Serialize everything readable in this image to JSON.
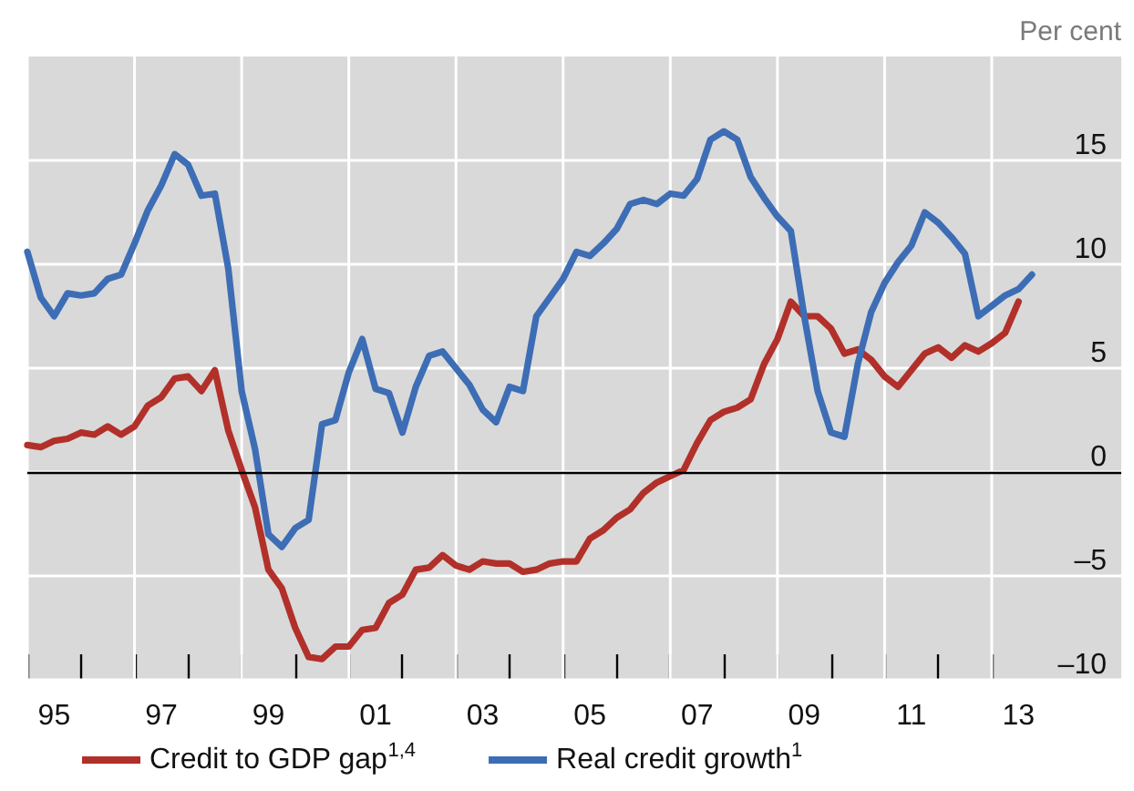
{
  "chart_data": {
    "type": "line",
    "ylabel": "Per cent",
    "xlim": [
      "1995-01",
      "2015-06"
    ],
    "ylim": [
      -10,
      20
    ],
    "xticks": [
      {
        "value": "1995-01",
        "label": null
      },
      {
        "value": "1996-01",
        "label": null
      },
      {
        "value": "1997-01",
        "label": null
      },
      {
        "value": "1998-01",
        "label": null
      },
      {
        "value": "1999-01",
        "label": null
      },
      {
        "value": "2000-01",
        "label": null
      },
      {
        "value": "2001-01",
        "label": null
      },
      {
        "value": "2002-01",
        "label": null
      },
      {
        "value": "2003-01",
        "label": null
      },
      {
        "value": "2004-01",
        "label": null
      },
      {
        "value": "2005-01",
        "label": null
      },
      {
        "value": "2006-01",
        "label": null
      },
      {
        "value": "2007-01",
        "label": null
      },
      {
        "value": "2008-01",
        "label": null
      },
      {
        "value": "2009-01",
        "label": null
      },
      {
        "value": "2010-01",
        "label": null
      },
      {
        "value": "2011-01",
        "label": null
      },
      {
        "value": "2012-01",
        "label": null
      },
      {
        "value": "2013-01",
        "label": null
      },
      {
        "value": "1995-07",
        "label": "95"
      },
      {
        "value": "1997-07",
        "label": "97"
      },
      {
        "value": "1999-07",
        "label": "99"
      },
      {
        "value": "2001-07",
        "label": "01"
      },
      {
        "value": "2003-07",
        "label": "03"
      },
      {
        "value": "2005-07",
        "label": "05"
      },
      {
        "value": "2007-07",
        "label": "07"
      },
      {
        "value": "2009-07",
        "label": "09"
      },
      {
        "value": "2011-07",
        "label": "11"
      },
      {
        "value": "2013-07",
        "label": "13"
      }
    ],
    "yticks": [
      {
        "value": -10,
        "label": "–10"
      },
      {
        "value": -5,
        "label": "–5"
      },
      0,
      5,
      10,
      15
    ],
    "grid": true,
    "legend": "bottom",
    "line_style": "solid",
    "ref_lines": [
      {
        "axis": "y",
        "value": 0,
        "color": "#000000"
      }
    ],
    "series": [
      {
        "name": "Credit to GDP gap$^{1,4}$",
        "color": "#b2302a",
        "x": [
          "1995-01",
          "1995-04",
          "1995-07",
          "1995-10",
          "1996-01",
          "1996-04",
          "1996-07",
          "1996-10",
          "1997-01",
          "1997-04",
          "1997-07",
          "1997-10",
          "1998-01",
          "1998-04",
          "1998-07",
          "1998-10",
          "1999-01",
          "1999-04",
          "1999-07",
          "1999-10",
          "2000-01",
          "2000-04",
          "2000-07",
          "2000-10",
          "2001-01",
          "2001-04",
          "2001-07",
          "2001-10",
          "2002-01",
          "2002-04",
          "2002-07",
          "2002-10",
          "2003-01",
          "2003-04",
          "2003-07",
          "2003-10",
          "2004-01",
          "2004-04",
          "2004-07",
          "2004-10",
          "2005-01",
          "2005-04",
          "2005-07",
          "2005-10",
          "2006-01",
          "2006-04",
          "2006-07",
          "2006-10",
          "2007-01",
          "2007-04",
          "2007-07",
          "2007-10",
          "2008-01",
          "2008-04",
          "2008-07",
          "2008-10",
          "2009-01",
          "2009-04",
          "2009-07",
          "2009-10",
          "2010-01",
          "2010-04",
          "2010-07",
          "2010-10",
          "2011-01",
          "2011-04",
          "2011-07",
          "2011-10",
          "2012-01",
          "2012-04",
          "2012-07",
          "2012-10",
          "2013-01",
          "2013-04",
          "2013-07"
        ],
        "values": [
          1.3,
          1.2,
          1.5,
          1.6,
          1.9,
          1.8,
          2.2,
          1.8,
          2.2,
          3.2,
          3.6,
          4.5,
          4.6,
          3.9,
          4.9,
          2.0,
          0.1,
          -1.7,
          -4.7,
          -5.6,
          -7.5,
          -8.9,
          -9.0,
          -8.4,
          -8.4,
          -7.6,
          -7.5,
          -6.3,
          -5.9,
          -4.7,
          -4.6,
          -4.0,
          -4.5,
          -4.7,
          -4.3,
          -4.4,
          -4.4,
          -4.8,
          -4.7,
          -4.4,
          -4.3,
          -4.3,
          -3.2,
          -2.8,
          -2.2,
          -1.8,
          -1.0,
          -0.5,
          -0.2,
          0.1,
          1.4,
          2.5,
          2.9,
          3.1,
          3.5,
          5.2,
          6.4,
          8.2,
          7.5,
          7.5,
          6.9,
          5.7,
          5.9,
          5.4,
          4.6,
          4.1,
          4.9,
          5.7,
          6.0,
          5.5,
          6.1,
          5.8,
          6.2,
          6.7,
          8.2
        ]
      },
      {
        "name": "Real credit growth$^{1}$",
        "color": "#3d6db5",
        "x": [
          "1995-01",
          "1995-04",
          "1995-07",
          "1995-10",
          "1996-01",
          "1996-04",
          "1996-07",
          "1996-10",
          "1997-01",
          "1997-04",
          "1997-07",
          "1997-10",
          "1998-01",
          "1998-04",
          "1998-07",
          "1998-10",
          "1999-01",
          "1999-04",
          "1999-07",
          "1999-10",
          "2000-01",
          "2000-04",
          "2000-07",
          "2000-10",
          "2001-01",
          "2001-04",
          "2001-07",
          "2001-10",
          "2002-01",
          "2002-04",
          "2002-07",
          "2002-10",
          "2003-01",
          "2003-04",
          "2003-07",
          "2003-10",
          "2004-01",
          "2004-04",
          "2004-07",
          "2004-10",
          "2005-01",
          "2005-04",
          "2005-07",
          "2005-10",
          "2006-01",
          "2006-04",
          "2006-07",
          "2006-10",
          "2007-01",
          "2007-04",
          "2007-07",
          "2007-10",
          "2008-01",
          "2008-04",
          "2008-07",
          "2008-10",
          "2009-01",
          "2009-04",
          "2009-07",
          "2009-10",
          "2010-01",
          "2010-04",
          "2010-07",
          "2010-10",
          "2011-01",
          "2011-04",
          "2011-07",
          "2011-10",
          "2012-01",
          "2012-04",
          "2012-07",
          "2012-10",
          "2013-01",
          "2013-04",
          "2013-07",
          "2013-10"
        ],
        "values": [
          10.6,
          8.4,
          7.5,
          8.6,
          8.5,
          8.6,
          9.3,
          9.5,
          11.0,
          12.6,
          13.8,
          15.3,
          14.8,
          13.3,
          13.4,
          9.8,
          3.9,
          1.1,
          -3.0,
          -3.6,
          -2.7,
          -2.3,
          2.3,
          2.5,
          4.8,
          6.4,
          4.0,
          3.8,
          1.9,
          4.1,
          5.6,
          5.8,
          5.0,
          4.2,
          3.0,
          2.4,
          4.1,
          3.9,
          7.5,
          8.4,
          9.3,
          10.6,
          10.4,
          11.0,
          11.7,
          12.9,
          13.1,
          12.9,
          13.4,
          13.3,
          14.1,
          16.0,
          16.4,
          16.0,
          14.2,
          13.2,
          12.3,
          11.6,
          7.5,
          3.9,
          1.9,
          1.7,
          5.2,
          7.7,
          9.1,
          10.1,
          10.9,
          12.5,
          12.0,
          11.3,
          10.5,
          7.5,
          8.0,
          8.5,
          8.8,
          9.5
        ]
      }
    ]
  }
}
